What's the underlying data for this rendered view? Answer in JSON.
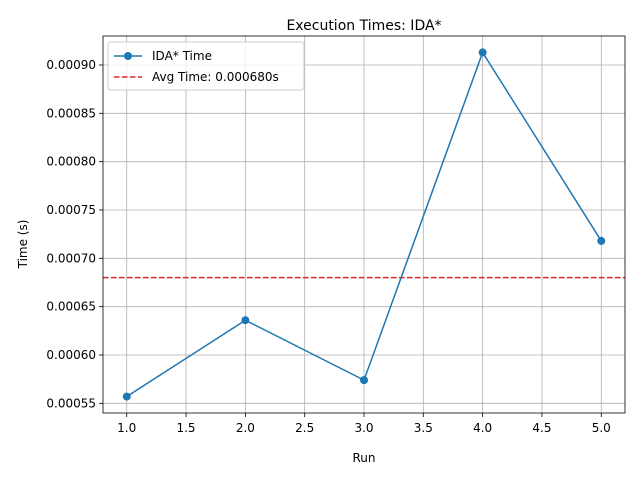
{
  "chart_data": {
    "type": "line",
    "title": "Execution Times: IDA*",
    "xlabel": "Run",
    "ylabel": "Time (s)",
    "x": [
      1,
      2,
      3,
      4,
      5
    ],
    "series": [
      {
        "name": "IDA* Time",
        "values": [
          0.000557,
          0.000636,
          0.000574,
          0.000913,
          0.000718
        ],
        "color": "#1f77b4",
        "marker": "circle"
      }
    ],
    "reference_line": {
      "label": "Avg Time: 0.000680s",
      "value": 0.00068,
      "color": "#d62728",
      "style": "dashed"
    },
    "xlim": [
      0.8,
      5.2
    ],
    "ylim": [
      0.00054,
      0.00093
    ],
    "xticks": [
      1.0,
      1.5,
      2.0,
      2.5,
      3.0,
      3.5,
      4.0,
      4.5,
      5.0
    ],
    "xtick_labels": [
      "1.0",
      "1.5",
      "2.0",
      "2.5",
      "3.0",
      "3.5",
      "4.0",
      "4.5",
      "5.0"
    ],
    "yticks": [
      0.00055,
      0.0006,
      0.00065,
      0.0007,
      0.00075,
      0.0008,
      0.00085,
      0.0009
    ],
    "ytick_labels": [
      "0.00055",
      "0.00060",
      "0.00065",
      "0.00070",
      "0.00075",
      "0.00080",
      "0.00085",
      "0.00090"
    ],
    "grid": true,
    "legend_position": "top-left"
  }
}
